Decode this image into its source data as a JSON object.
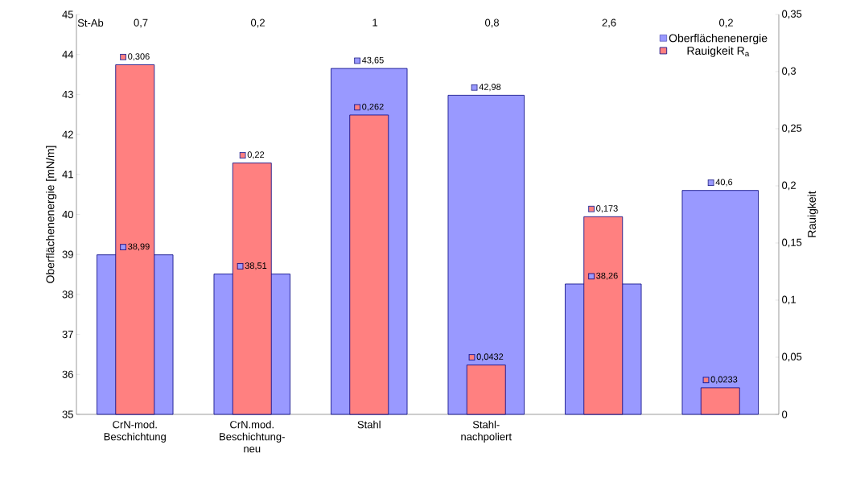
{
  "chart_data": {
    "type": "bar",
    "ylabel": "Oberflächenenergie [mN/m]",
    "y2label": "Rauigkeit",
    "categories": [
      "CrN-mod. Beschichtung",
      "CrN.mod. Beschichtung-neu",
      "Stahl",
      "Stahl-nachpoliert",
      null,
      null
    ],
    "series": [
      {
        "name": "Oberflächenenergie",
        "color": "#9999ff",
        "values": [
          38.99,
          38.51,
          43.65,
          42.98,
          38.26,
          40.6
        ],
        "value_labels": [
          "38,99",
          "38,51",
          "43,65",
          "42,98",
          "38,26",
          "40,6"
        ]
      },
      {
        "name": "Rauigkeit  R$_{a}$",
        "color": "#ff8080",
        "axis": "y2",
        "values": [
          0.306,
          0.22,
          0.262,
          0.0432,
          0.173,
          0.0233
        ],
        "value_labels": [
          "0,306",
          "0,22",
          "0,262",
          "0,0432",
          "0,173",
          "0,0233"
        ]
      }
    ],
    "ylim": [
      35,
      45
    ],
    "yticks": [
      35,
      36,
      37,
      38,
      39,
      40,
      41,
      42,
      43,
      44,
      45
    ],
    "y2lim": [
      0,
      0.35
    ],
    "y2ticks": [
      0,
      {
        "value": 0.05,
        "label": "0,05"
      },
      {
        "value": 0.1,
        "label": "0,1"
      },
      {
        "value": 0.15,
        "label": "0,15"
      },
      {
        "value": 0.2,
        "label": "0,2"
      },
      {
        "value": 0.25,
        "label": "0,25"
      },
      {
        "value": 0.3,
        "label": "0,3"
      },
      {
        "value": 0.35,
        "label": "0,35"
      }
    ],
    "legend": "top right",
    "grid": false,
    "annotations": [
      "St-Ab",
      "0,7",
      "0,2",
      "1",
      "0,8",
      "2,6",
      "0,2"
    ]
  }
}
